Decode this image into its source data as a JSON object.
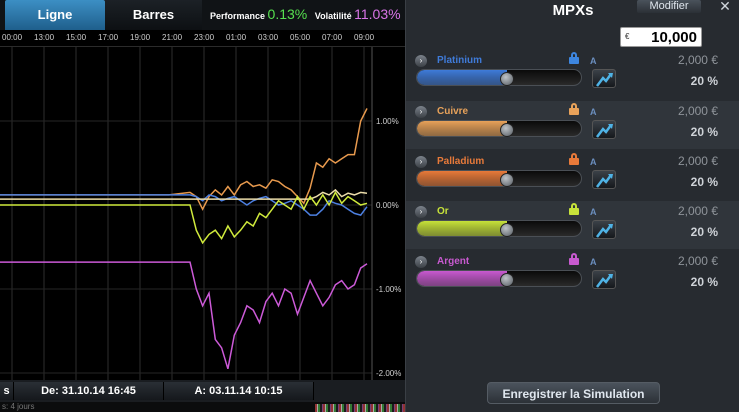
{
  "tabs": {
    "ligne": "Ligne",
    "barres": "Barres"
  },
  "performance": {
    "label": "Performance",
    "value": "0.13%",
    "vol_label": "Volatilité",
    "vol_value": "11.03%"
  },
  "time_labels": [
    "00:00",
    "13:00",
    "15:00",
    "17:00",
    "19:00",
    "21:00",
    "23:00",
    "01:00",
    "03:00",
    "05:00",
    "07:00",
    "09:00"
  ],
  "bottom": {
    "from": "De: 31.10.14 16:45",
    "to": "A: 03.11.14 10:15",
    "left_stub": "s",
    "strip_text": "s: 4 jours"
  },
  "panel": {
    "title": "MPXs",
    "modify": "Modifier",
    "close": "✕",
    "amount_currency": "€",
    "amount_value": "10,000",
    "save": "Enregistrer la Simulation"
  },
  "metals": [
    {
      "name": "Platinium",
      "mode": "A",
      "amount": "2,000 €",
      "pct": "20 %",
      "color": "#3f7bd9",
      "lock_color": "#3d86e0",
      "level": 0.55
    },
    {
      "name": "Cuivre",
      "mode": "A",
      "amount": "2,000 €",
      "pct": "20 %",
      "color": "#e8a25a",
      "lock_color": "#e8a25a",
      "level": 0.55
    },
    {
      "name": "Palladium",
      "mode": "A",
      "amount": "2,000 €",
      "pct": "20 %",
      "color": "#e87a3a",
      "lock_color": "#e87a3a",
      "level": 0.55
    },
    {
      "name": "Or",
      "mode": "A",
      "amount": "2,000 €",
      "pct": "20 %",
      "color": "#c7e23a",
      "lock_color": "#c7e23a",
      "level": 0.55
    },
    {
      "name": "Argent",
      "mode": "A",
      "amount": "2,000 €",
      "pct": "20 %",
      "color": "#c85ad0",
      "lock_color": "#c85ad0",
      "level": 0.55
    }
  ],
  "chart_data": {
    "type": "line",
    "y_ticks": [
      "1.00%",
      "0.00%",
      "-1.00%",
      "-2.00%"
    ],
    "ylim": [
      -2.0,
      1.15
    ],
    "grid": true,
    "series": [
      {
        "color": "#e89a4e",
        "values": [
          0.12,
          0.12,
          0.12,
          0.12,
          0.12,
          0.12,
          0.12,
          0.12,
          0.12,
          0.15,
          0.1,
          -0.05,
          0.1,
          0.18,
          0.12,
          0.22,
          0.12,
          0.24,
          0.28,
          0.22,
          0.24,
          0.2,
          0.3,
          0.28,
          0.22,
          0.18,
          0.1,
          0.02,
          0.2,
          0.5,
          0.45,
          0.55,
          0.5,
          0.55,
          0.6,
          0.6,
          1.0,
          1.15
        ]
      },
      {
        "color": "#4c7fe0",
        "values": [
          0.12,
          0.12,
          0.12,
          0.12,
          0.12,
          0.12,
          0.12,
          0.12,
          0.12,
          0.12,
          0.1,
          0.05,
          0.12,
          0.1,
          0.05,
          0.08,
          0.1,
          0.05,
          0.0,
          0.05,
          0.08,
          0.1,
          0.05,
          0.0,
          0.02,
          0.05,
          0.0,
          -0.05,
          -0.12,
          -0.12,
          -0.05,
          0.05,
          0.02,
          0.0,
          -0.05,
          -0.1,
          -0.12,
          -0.02
        ]
      },
      {
        "color": "#ecddaa",
        "values": [
          0.07,
          0.07,
          0.07,
          0.07,
          0.07,
          0.07,
          0.07,
          0.07,
          0.07,
          0.07,
          0.07,
          0.07,
          0.07,
          0.07,
          0.07,
          0.07,
          0.07,
          0.07,
          0.07,
          0.07,
          0.07,
          0.07,
          0.07,
          0.07,
          0.07,
          0.07,
          0.07,
          0.07,
          0.07,
          0.1,
          0.15,
          0.12,
          0.18,
          0.1,
          0.14,
          0.12,
          0.15,
          0.14
        ]
      },
      {
        "color": "#d0ea3c",
        "values": [
          0.0,
          0.0,
          0.0,
          0.0,
          0.0,
          0.0,
          0.0,
          0.0,
          0.0,
          0.0,
          -0.3,
          -0.45,
          -0.35,
          -0.3,
          -0.4,
          -0.25,
          -0.38,
          -0.3,
          -0.2,
          -0.25,
          -0.1,
          -0.15,
          -0.05,
          0.05,
          0.0,
          -0.05,
          0.1,
          -0.05,
          0.1,
          0.0,
          0.12,
          0.0,
          0.15,
          0.02,
          0.1,
          0.05,
          0.0,
          0.02
        ]
      },
      {
        "color": "#cc5ad8",
        "values": [
          -0.68,
          -0.68,
          -0.68,
          -0.68,
          -0.68,
          -0.68,
          -0.68,
          -0.68,
          -0.68,
          -0.68,
          -1.0,
          -1.2,
          -1.05,
          -1.6,
          -1.7,
          -1.95,
          -1.55,
          -1.4,
          -1.2,
          -1.25,
          -1.4,
          -1.15,
          -1.05,
          -1.2,
          -1.0,
          -1.05,
          -1.3,
          -1.1,
          -0.9,
          -1.05,
          -1.2,
          -1.1,
          -0.95,
          -0.9,
          -1.0,
          -0.95,
          -0.75,
          -0.7
        ]
      }
    ]
  }
}
